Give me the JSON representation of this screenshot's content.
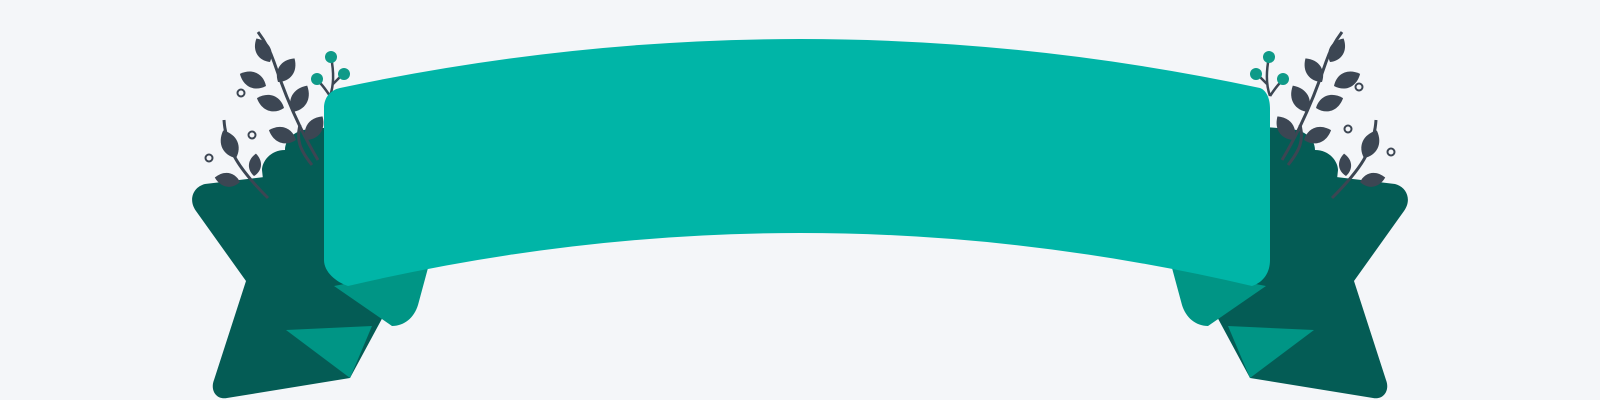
{
  "banner": {
    "text": ""
  },
  "colors": {
    "background": "#f4f6f9",
    "ribbon_main": "#00b5a7",
    "ribbon_fold": "#009585",
    "ribbon_tail": "#045c55",
    "foliage": "#3c4653",
    "berries": "#0e9a88"
  },
  "decorations": {
    "left_icon": "leafy-branch-icon",
    "right_icon": "leafy-branch-icon",
    "berry_icon": "berry-sprig-icon",
    "dot_icon": "small-circle-icon"
  }
}
